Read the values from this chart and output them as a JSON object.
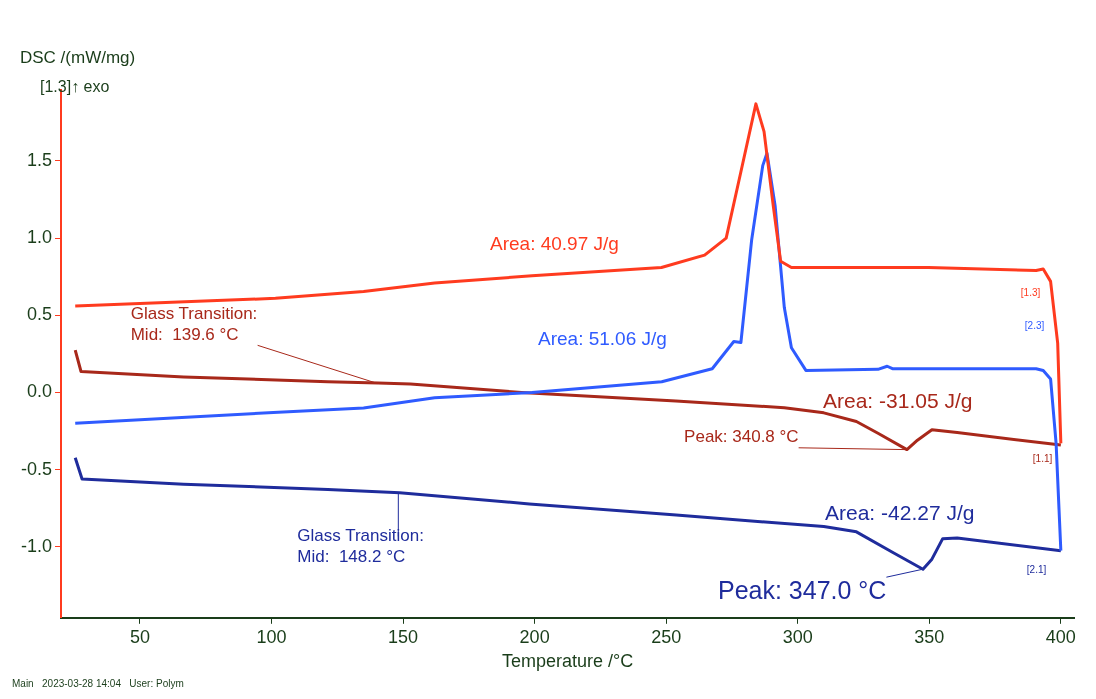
{
  "chart_data": {
    "type": "line",
    "xlabel": "Temperature /°C",
    "ylabel": "DSC /(mW/mg)",
    "xlim": [
      20,
      405
    ],
    "ylim": [
      -1.46,
      1.96
    ],
    "xticks": [
      50,
      100,
      150,
      200,
      250,
      300,
      350,
      400
    ],
    "yticks": [
      {
        "value": -1,
        "label": "-1.0"
      },
      {
        "value": -0.5,
        "label": "-0.5"
      },
      {
        "value": 0,
        "label": "0.0"
      },
      {
        "value": 0.5,
        "label": "0.5"
      },
      {
        "value": 1,
        "label": "1.0"
      },
      {
        "value": 1.5,
        "label": "1.5"
      }
    ],
    "grid": false,
    "legend": false,
    "marker": "none",
    "series": [
      {
        "name": "[1.3]",
        "color": "#ff3b1f",
        "x": [
          25.4,
          101.5,
          135,
          162,
          199,
          248.2,
          264.6,
          272.8,
          278.4,
          284.1,
          287.2,
          290.7,
          293.5,
          297.6,
          349.7,
          390.6,
          393.3,
          396.1,
          398.8,
          400
        ],
        "values": [
          0.56,
          0.61,
          0.655,
          0.71,
          0.756,
          0.81,
          0.89,
          1.0,
          1.43,
          1.87,
          1.69,
          1.21,
          0.85,
          0.81,
          0.81,
          0.79,
          0.8,
          0.72,
          0.32,
          -0.33
        ]
      },
      {
        "name": "[2.3]",
        "color": "#2f5bff",
        "x": [
          25.4,
          100.7,
          135,
          162,
          199,
          248.3,
          267.5,
          275.7,
          278.4,
          282.5,
          286.7,
          288.3,
          291.4,
          294.9,
          297.6,
          303.1,
          330.5,
          334,
          336,
          390.6,
          393.3,
          396.1,
          398.2,
          400
        ],
        "values": [
          -0.2,
          -0.13,
          -0.1,
          -0.034,
          0,
          0.07,
          0.154,
          0.33,
          0.324,
          0.99,
          1.47,
          1.55,
          1.21,
          0.55,
          0.29,
          0.143,
          0.15,
          0.17,
          0.154,
          0.154,
          0.142,
          0.088,
          -0.33,
          -1.025
        ]
      },
      {
        "name": "[1.1]",
        "color": "#a8281a",
        "x": [
          25.4,
          27.6,
          66.6,
          121.4,
          140.5,
          152.8,
          195,
          253.7,
          294.9,
          309.9,
          322.3,
          330.5,
          341.5,
          345.5,
          351,
          360.6,
          400
        ],
        "values": [
          0.275,
          0.136,
          0.1,
          0.07,
          0.062,
          0.055,
          0,
          -0.055,
          -0.099,
          -0.132,
          -0.188,
          -0.264,
          -0.37,
          -0.309,
          -0.242,
          -0.26,
          -0.341
        ]
      },
      {
        "name": "[2.1]",
        "color": "#1f2c9c",
        "x": [
          25.4,
          28,
          66.6,
          121.4,
          148.7,
          198,
          253.8,
          309.9,
          322.3,
          336,
          347.6,
          351,
          355.1,
          360.6,
          400
        ],
        "values": [
          -0.423,
          -0.561,
          -0.595,
          -0.628,
          -0.649,
          -0.722,
          -0.794,
          -0.869,
          -0.903,
          -1.035,
          -1.145,
          -1.08,
          -0.947,
          -0.943,
          -1.025
        ]
      }
    ],
    "annotations": [
      "Area: 40.97 J/g",
      "Area: 51.06 J/g",
      {
        "text": "Glass Transition:\nMid:  139.6 °C",
        "x": 139.6,
        "y": 0.062
      },
      "Area: -31.05 J/g",
      {
        "text": "Peak: 340.8 °C",
        "x": 340.8,
        "y": -0.37
      },
      "Area: -42.27 J/g",
      {
        "text": "Glass Transition:\nMid:  148.2 °C",
        "x": 148.2,
        "y": -0.649
      },
      {
        "text": "Peak: 347.0 °C",
        "x": 347.6,
        "y": -1.145
      },
      "[1.3]↑ exo",
      "Main   2023-03-28 14:04   User: Polym"
    ]
  }
}
